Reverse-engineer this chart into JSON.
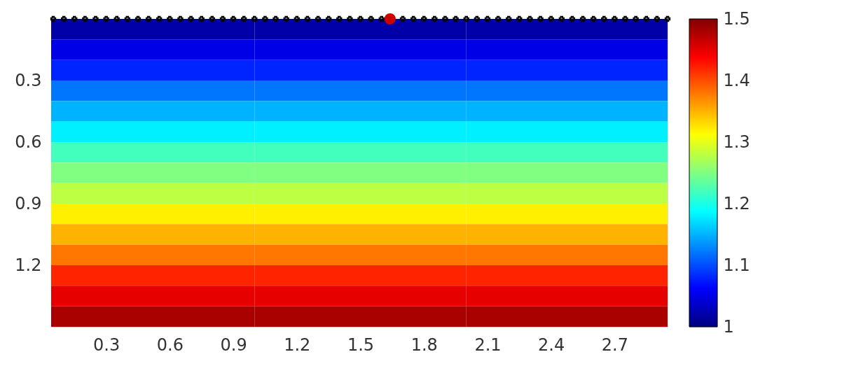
{
  "chart_data": {
    "type": "heatmap",
    "x": [
      0.5,
      1.5,
      2.5
    ],
    "y": [
      0.05,
      0.15,
      0.25,
      0.35,
      0.45,
      0.55,
      0.65,
      0.75,
      0.85,
      0.95,
      1.05,
      1.15,
      1.25,
      1.35,
      1.45
    ],
    "cells": [
      [
        1.02,
        1.02,
        1.02
      ],
      [
        1.05,
        1.05,
        1.05
      ],
      [
        1.08,
        1.08,
        1.08
      ],
      [
        1.12,
        1.12,
        1.12
      ],
      [
        1.15,
        1.15,
        1.15
      ],
      [
        1.18,
        1.18,
        1.18
      ],
      [
        1.22,
        1.22,
        1.22
      ],
      [
        1.25,
        1.25,
        1.25
      ],
      [
        1.28,
        1.28,
        1.28
      ],
      [
        1.32,
        1.32,
        1.32
      ],
      [
        1.35,
        1.35,
        1.35
      ],
      [
        1.38,
        1.38,
        1.38
      ],
      [
        1.42,
        1.42,
        1.42
      ],
      [
        1.45,
        1.45,
        1.45
      ],
      [
        1.48,
        1.48,
        1.48
      ]
    ],
    "xlim": [
      0.04,
      2.95
    ],
    "xticks": [
      0.3,
      0.6,
      0.9,
      1.2,
      1.5,
      1.8,
      2.1,
      2.4,
      2.7
    ],
    "ylim": [
      1.5,
      0
    ],
    "yticks": [
      0.3,
      0.6,
      0.9,
      1.2
    ],
    "clim": [
      1,
      1.5
    ],
    "cticks": [
      1,
      1.1,
      1.2,
      1.3,
      1.4,
      1.5
    ],
    "grid": false,
    "series": [
      {
        "type": "scatter",
        "color": "#000000",
        "marker": "cross",
        "x": [
          0.05,
          0.1,
          0.15,
          0.2,
          0.25,
          0.3,
          0.35,
          0.4,
          0.45,
          0.5,
          0.55,
          0.6,
          0.65,
          0.7,
          0.75,
          0.8,
          0.85,
          0.9,
          0.95,
          1.0,
          1.05,
          1.1,
          1.15,
          1.2,
          1.25,
          1.3,
          1.35,
          1.4,
          1.45,
          1.5,
          1.55,
          1.6,
          1.7,
          1.75,
          1.8,
          1.85,
          1.9,
          1.95,
          2.0,
          2.05,
          2.1,
          2.15,
          2.2,
          2.25,
          2.3,
          2.35,
          2.4,
          2.45,
          2.5,
          2.55,
          2.6,
          2.65,
          2.7,
          2.75,
          2.8,
          2.85,
          2.9,
          2.95
        ],
        "values": [
          0,
          0,
          0,
          0,
          0,
          0,
          0,
          0,
          0,
          0,
          0,
          0,
          0,
          0,
          0,
          0,
          0,
          0,
          0,
          0,
          0,
          0,
          0,
          0,
          0,
          0,
          0,
          0,
          0,
          0,
          0,
          0,
          0,
          0,
          0,
          0,
          0,
          0,
          0,
          0,
          0,
          0,
          0,
          0,
          0,
          0,
          0,
          0,
          0,
          0,
          0,
          0,
          0,
          0,
          0,
          0,
          0,
          0
        ]
      },
      {
        "type": "scatter",
        "color": "#cc0000",
        "marker": "circle",
        "x": [
          1.64
        ],
        "values": [
          0
        ]
      }
    ]
  }
}
